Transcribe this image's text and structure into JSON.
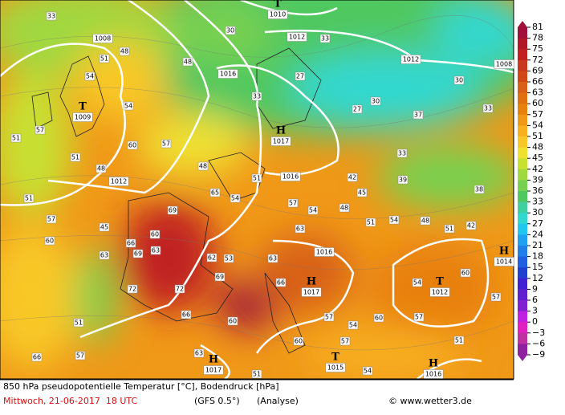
{
  "title": "850 hPa pseudopotentielle Temperatur [°C], Bodendruck [hPa]",
  "date": "Mittwoch, 21-06-2017  18 UTC",
  "model": "(GFS 0.5°)",
  "run": "(Analyse)",
  "credit": "© www.wetter3.de",
  "colorbar": {
    "ticks": [
      81,
      78,
      75,
      72,
      69,
      66,
      63,
      60,
      57,
      54,
      51,
      48,
      45,
      42,
      39,
      36,
      33,
      30,
      27,
      24,
      21,
      18,
      15,
      12,
      9,
      6,
      3,
      0,
      {
        "value": -3,
        "label": "−3"
      },
      {
        "value": -6,
        "label": "−6"
      },
      {
        "value": -9,
        "label": "−9"
      }
    ],
    "colors": [
      "#a0103a",
      "#b01828",
      "#c02020",
      "#c83820",
      "#d04818",
      "#d86018",
      "#e07010",
      "#e88010",
      "#f09818",
      "#f8b020",
      "#f8c828",
      "#f0e030",
      "#c8e030",
      "#a0d840",
      "#78d050",
      "#50c860",
      "#40d0a0",
      "#30d8d0",
      "#20c8f0",
      "#20a0f0",
      "#2080e8",
      "#2060e0",
      "#2040d0",
      "#4020d0",
      "#6020d0",
      "#8020d0",
      "#c020e0",
      "#e020c0",
      "#c030a0",
      "#9020a0"
    ]
  },
  "pressure_centers": [
    {
      "letter": "T",
      "value": "1009"
    },
    {
      "letter": "H",
      "value": "1017"
    },
    {
      "letter": "T",
      "value": "1010"
    },
    {
      "letter": "H",
      "value": "1017"
    },
    {
      "letter": "T",
      "value": "1012"
    },
    {
      "letter": "H",
      "value": "1014"
    },
    {
      "letter": "T",
      "value": "1015"
    },
    {
      "letter": "H",
      "value": "1016"
    },
    {
      "letter": "H",
      "value": "1017"
    }
  ],
  "isobar_labels": [
    "1008",
    "1016",
    "1012",
    "1012",
    "1008",
    "1012",
    "1016",
    "1016"
  ],
  "temperature_labels": [
    "33",
    "30",
    "33",
    "27",
    "30",
    "48",
    "51",
    "54",
    "48",
    "33",
    "30",
    "27",
    "33",
    "37",
    "57",
    "54",
    "51",
    "60",
    "57",
    "51",
    "48",
    "48",
    "51",
    "33",
    "42",
    "39",
    "38",
    "51",
    "57",
    "45",
    "65",
    "54",
    "57",
    "54",
    "48",
    "51",
    "54",
    "48",
    "42",
    "51",
    "45",
    "66",
    "69",
    "60",
    "63",
    "69",
    "62",
    "53",
    "63",
    "63",
    "72",
    "72",
    "66",
    "69",
    "63",
    "66",
    "60",
    "57",
    "54",
    "60",
    "57",
    "60",
    "51",
    "66",
    "57",
    "51",
    "63",
    "60",
    "57",
    "54",
    "51",
    "54",
    "57",
    "60"
  ]
}
